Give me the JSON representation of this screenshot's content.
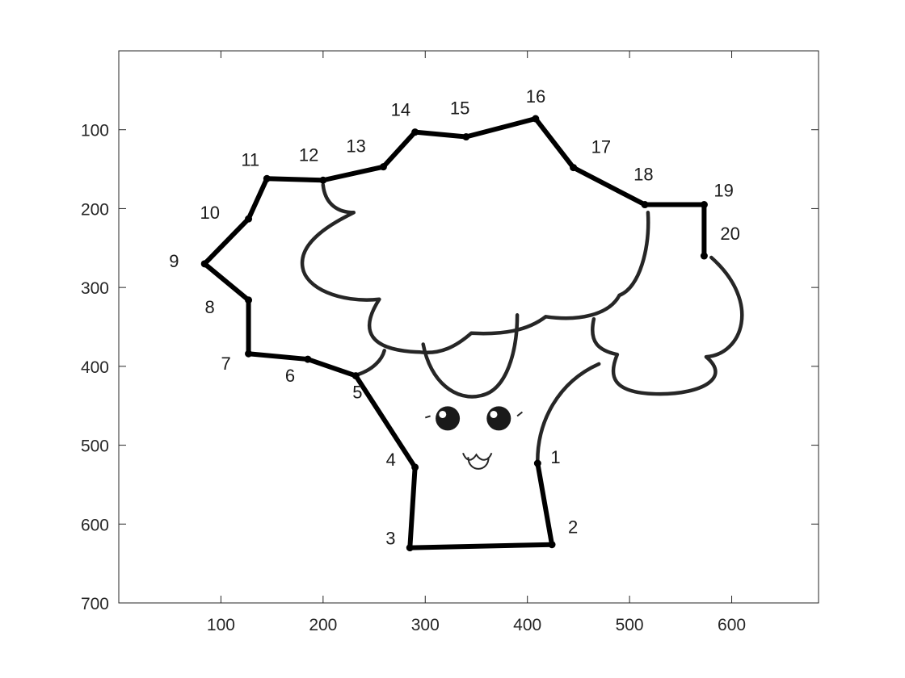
{
  "chart_data": {
    "type": "line",
    "title": "",
    "xlabel": "",
    "ylabel": "",
    "xlim": [
      0,
      685
    ],
    "ylim": [
      700,
      0
    ],
    "y_reversed": true,
    "grid": false,
    "box": true,
    "x_ticks": [
      100,
      200,
      300,
      400,
      500,
      600
    ],
    "y_ticks": [
      100,
      200,
      300,
      400,
      500,
      600,
      700
    ],
    "x_tick_labels": [
      "100",
      "200",
      "300",
      "400",
      "500",
      "600"
    ],
    "y_tick_labels": [
      "100",
      "200",
      "300",
      "400",
      "500",
      "600",
      "700"
    ],
    "background_image": "broccoli-cartoon",
    "series": [
      {
        "color": "#000000",
        "points": [
          {
            "label": "1",
            "x": 410,
            "y": 523
          },
          {
            "label": "2",
            "x": 424,
            "y": 626
          },
          {
            "label": "3",
            "x": 285,
            "y": 630
          },
          {
            "label": "4",
            "x": 290,
            "y": 528
          },
          {
            "label": "5",
            "x": 232,
            "y": 412
          },
          {
            "label": "6",
            "x": 185,
            "y": 391
          },
          {
            "label": "7",
            "x": 127,
            "y": 384
          },
          {
            "label": "8",
            "x": 127,
            "y": 316
          },
          {
            "label": "9",
            "x": 84,
            "y": 270
          },
          {
            "label": "10",
            "x": 127,
            "y": 213
          },
          {
            "label": "11",
            "x": 145,
            "y": 162
          },
          {
            "label": "12",
            "x": 200,
            "y": 164
          },
          {
            "label": "13",
            "x": 259,
            "y": 147
          },
          {
            "label": "14",
            "x": 290,
            "y": 103
          },
          {
            "label": "15",
            "x": 340,
            "y": 109
          },
          {
            "label": "16",
            "x": 408,
            "y": 86
          },
          {
            "label": "17",
            "x": 445,
            "y": 148
          },
          {
            "label": "18",
            "x": 515,
            "y": 195
          },
          {
            "label": "19",
            "x": 573,
            "y": 195
          },
          {
            "label": "20",
            "x": 573,
            "y": 260
          }
        ]
      }
    ]
  }
}
